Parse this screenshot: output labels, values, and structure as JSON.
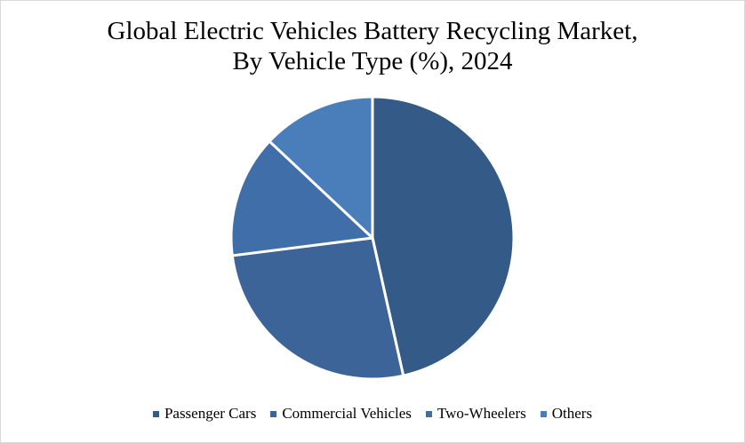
{
  "chart_data": {
    "type": "pie",
    "title_line1": "Global Electric Vehicles Battery Recycling Market,",
    "title_line2": "By Vehicle Type (%), 2024",
    "categories": [
      "Passenger Cars",
      "Commercial Vehicles",
      "Two-Wheelers",
      "Others"
    ],
    "values": [
      46.5,
      26.5,
      14.0,
      13.0
    ],
    "colors": [
      "#345a87",
      "#3c6499",
      "#3f6ea8",
      "#4a7ebb"
    ],
    "legend_position": "bottom"
  }
}
